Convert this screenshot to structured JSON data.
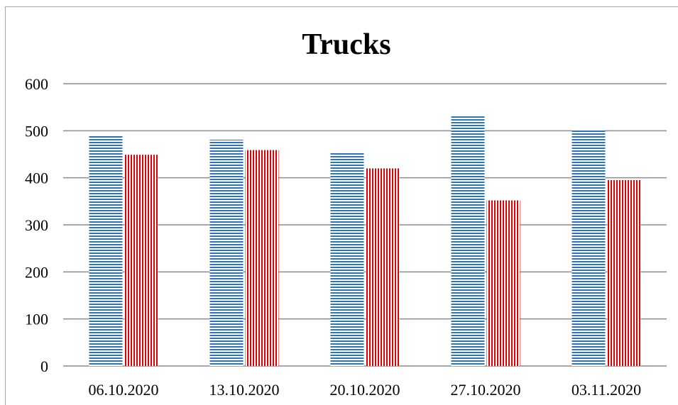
{
  "chart_data": {
    "type": "bar",
    "title": "Trucks",
    "xlabel": "",
    "ylabel": "",
    "categories": [
      "06.10.2020",
      "13.10.2020",
      "20.10.2020",
      "27.10.2020",
      "03.11.2020"
    ],
    "series": [
      {
        "values": [
          490,
          481,
          455,
          533,
          503
        ],
        "color": "#2e75b6",
        "pattern": "horizontal-stripes"
      },
      {
        "values": [
          449,
          459,
          420,
          352,
          395
        ],
        "color": "#e00000",
        "pattern": "vertical-stripes"
      }
    ],
    "ylim": [
      0,
      600
    ],
    "yticks": [
      "0",
      "100",
      "200",
      "300",
      "400",
      "500",
      "600"
    ],
    "grid": true,
    "legend": "none"
  }
}
